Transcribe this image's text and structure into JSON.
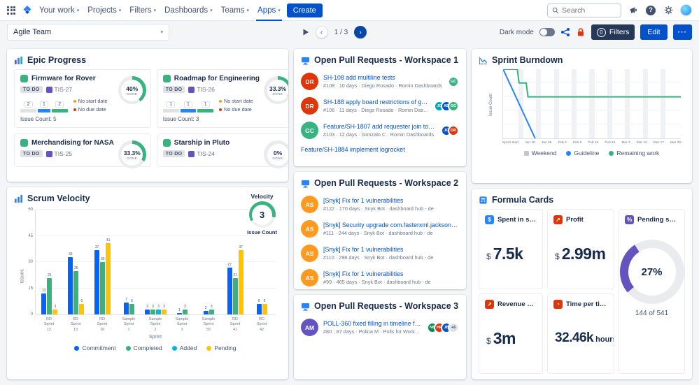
{
  "icons": {
    "app-switcher-icon": "3x3-dot-grid",
    "jira-logo": "blue-diamond",
    "search-icon": "magnifier",
    "announcement-icon": "megaphone",
    "help-icon": "question-circle",
    "settings-icon": "gear",
    "share-icon": "share-nodes",
    "lock-icon": "red-padlock",
    "play-icon": "triangle",
    "chevron-down-icon": "▾",
    "prev-icon": "‹",
    "next-icon": "›"
  },
  "nav": {
    "items": [
      "Your work",
      "Projects",
      "Filters",
      "Dashboards",
      "Teams",
      "Apps"
    ],
    "create_label": "Create",
    "search_placeholder": "Search"
  },
  "toolbar": {
    "dashboard_select": "Agile Team",
    "page_indicator": "1 / 3",
    "dark_mode_label": "Dark mode",
    "filters_count": "0",
    "filters_label": "Filters",
    "edit_label": "Edit",
    "more_label": "···"
  },
  "epic_progress": {
    "title": "Epic Progress",
    "epics": [
      {
        "title": "Firmware for Rover",
        "status": "TO DO",
        "key": "TIS-27",
        "percent": "40%",
        "percent_value": 40,
        "done_label": "DONE",
        "segments": [
          {
            "count": 2,
            "color": "#dfe1e6"
          },
          {
            "count": 1,
            "color": "#2684ff"
          },
          {
            "count": 2,
            "color": "#36b37e"
          }
        ],
        "notes": [
          {
            "label": "No start date",
            "color": "#ff991f"
          },
          {
            "label": "No due date",
            "color": "#de350b"
          }
        ],
        "issue_count_label": "Issue Count: 5"
      },
      {
        "title": "Roadmap for Engineering",
        "status": "TO DO",
        "key": "TIS-26",
        "percent": "33.3%",
        "percent_value": 33.3,
        "done_label": "DONE",
        "segments": [
          {
            "count": 1,
            "color": "#dfe1e6"
          },
          {
            "count": 1,
            "color": "#2684ff"
          },
          {
            "count": 1,
            "color": "#36b37e"
          }
        ],
        "notes": [
          {
            "label": "No start date",
            "color": "#ff991f"
          },
          {
            "label": "No due date",
            "color": "#de350b"
          }
        ],
        "issue_count_label": "Issue Count: 3"
      },
      {
        "title": "Merchandising for NASA",
        "status": "TO DO",
        "key": "TIS-25",
        "percent": "33.3%",
        "percent_value": 33.3,
        "done_label": "DONE"
      },
      {
        "title": "Starship in Pluto",
        "status": "TO DO",
        "key": "TIS-24",
        "percent": "0%",
        "percent_value": 0,
        "done_label": "DONE"
      }
    ]
  },
  "scrum_velocity": {
    "title": "Scrum Velocity",
    "velocity_label": "Velocity",
    "velocity_value": "3",
    "velocity_sub": "Issue Count"
  },
  "pull_requests": {
    "workspaces": [
      {
        "title": "Open Pull Requests - Workspace 1",
        "rows": [
          {
            "avatar": {
              "initials": "DR",
              "color": "#de350b"
            },
            "title": "SH-108 add multiline tests",
            "meta": "#108 · 10 days · Diego Rosado · Romin Dashboards",
            "reviewers": [
              {
                "initials": "GC",
                "color": "#36b37e"
              }
            ]
          },
          {
            "avatar": {
              "initials": "DR",
              "color": "#de350b"
            },
            "title": "SH-188 apply board restrictions of gadget n...",
            "meta": "#106 · 11 days · Diego Rosado · Romin Dashboards",
            "reviewers": [
              {
                "initials": "JG",
                "color": "#00a3bf"
              },
              {
                "initials": "AB",
                "color": "#0052cc"
              },
              {
                "initials": "GC",
                "color": "#36b37e"
              }
            ]
          },
          {
            "avatar": {
              "initials": "GC",
              "color": "#36b37e"
            },
            "title": "Feature/SH-1807 add requester join to the de...",
            "meta": "#103 · 12 days · Gonzalo C · Romin Dashboards",
            "reviewers": [
              {
                "initials": "JG",
                "color": "#0052cc"
              },
              {
                "initials": "DR",
                "color": "#de350b"
              }
            ]
          },
          {
            "title": "Feature/SH-1884 implement logrocket"
          }
        ]
      },
      {
        "title": "Open Pull Requests - Workspace 2",
        "rows": [
          {
            "avatar": {
              "initials": "AS",
              "color": "#ff991f"
            },
            "title": "[Snyk] Fix for 1 vulnerabilities",
            "meta": "#122 · 170 days · Snyk Bot · dashboard hub - de"
          },
          {
            "avatar": {
              "initials": "AS",
              "color": "#ff991f"
            },
            "title": "[Snyk] Security upgrade com.fasterxml.jackson.datatype ja...",
            "meta": "#111 · 244 days · Snyk Bot · dashboard hub - de"
          },
          {
            "avatar": {
              "initials": "AS",
              "color": "#ff991f"
            },
            "title": "[Snyk] Fix for 1 vulnerabilities",
            "meta": "#110 · 298 days · Snyk Bot · dashboard hub - de"
          },
          {
            "avatar": {
              "initials": "AS",
              "color": "#ff991f"
            },
            "title": "[Snyk] Fix for 1 vulnerabilities",
            "meta": "#99 · 465 days · Snyk Bot · dashboard hub - de"
          }
        ]
      },
      {
        "title": "Open Pull Requests - Workspace 3",
        "rows": [
          {
            "avatar": {
              "initials": "AM",
              "color": "#6554c0"
            },
            "title": "POLL-360 fixed filling in timeline for sv...",
            "meta": "#80 · 87 days · Polina M · Polls for Workspace Confluence",
            "reviewers": [
              {
                "initials": "NB",
                "color": "#00875a"
              },
              {
                "initials": "HR",
                "color": "#de350b"
              },
              {
                "initials": "JB",
                "color": "#0052cc"
              }
            ],
            "extra": "+6"
          }
        ]
      }
    ]
  },
  "burndown": {
    "title": "Sprint Burndown"
  },
  "formula": {
    "title": "Formula Cards",
    "cards": [
      {
        "icon": "spent-icon",
        "glyph": "$",
        "icon_color": "#2684ff",
        "title": "Spent in support",
        "prefix": "$",
        "value": "7.5k"
      },
      {
        "icon": "profit-icon",
        "glyph": "↗",
        "icon_color": "#de350b",
        "title": "Profit",
        "prefix": "$",
        "value": "2.99m"
      },
      {
        "icon": "pending-icon",
        "glyph": "%",
        "icon_color": "#6554c0",
        "title": "Pending suppo...",
        "donut": {
          "percent": 27,
          "label": "27%",
          "sub": "144 of 541",
          "color": "#6554c0"
        }
      },
      {
        "icon": "revenue-icon",
        "glyph": "↗",
        "icon_color": "#de350b",
        "title": "Revenue premi...",
        "prefix": "$",
        "value": "3m"
      },
      {
        "icon": "time-icon",
        "glyph": "◔",
        "icon_color": "#de350b",
        "title": "Time per ticket",
        "value": "32.46k",
        "suffix": "hours"
      }
    ]
  },
  "chart_data": [
    {
      "type": "bar",
      "title": "Scrum Velocity",
      "xlabel": "Sprint",
      "ylabel": "Issues",
      "ylim": [
        0,
        60
      ],
      "yticks": [
        0,
        15,
        30,
        45,
        60
      ],
      "categories": [
        "RD Sprint 12",
        "RD Sprint 13",
        "RD Sprint 10",
        "Sample Sprint 1",
        "Sample Sprint 2",
        "Sample Sprint 3",
        "Sample Sprint 55",
        "RD Sprint 41",
        "RD Sprint 42"
      ],
      "series": [
        {
          "name": "Commitment",
          "color": "#0065ff",
          "values": [
            12,
            33,
            37,
            7,
            3,
            1,
            2,
            27,
            6
          ]
        },
        {
          "name": "Completed",
          "color": "#36b37e",
          "values": [
            21,
            25,
            30,
            6,
            3,
            3,
            3,
            21,
            0
          ]
        },
        {
          "name": "Added",
          "color": "#00b8d9",
          "values": [
            0,
            0,
            0,
            0,
            3,
            0,
            0,
            0,
            0
          ]
        },
        {
          "name": "Pending",
          "color": "#ffc400",
          "values": [
            3,
            6,
            41,
            0,
            3,
            0,
            0,
            37,
            6
          ]
        }
      ],
      "legend_position": "bottom"
    },
    {
      "type": "line",
      "title": "Sprint Burndown",
      "ylabel": "Issue Count",
      "ylim": [
        0,
        5
      ],
      "yticks": [
        0,
        1,
        2,
        3,
        4,
        5
      ],
      "x_ticks": [
        "Sprint start",
        "Jan 18",
        "Jan 26",
        "Feb 2",
        "Feb 9",
        "Feb 16",
        "Feb 24",
        "Mar 3",
        "Mar 10",
        "Mar 17",
        "Mar 30"
      ],
      "series": [
        {
          "name": "Guideline",
          "color": "#2684ff",
          "points": [
            [
              0,
              5
            ],
            [
              1.8,
              0
            ]
          ]
        },
        {
          "name": "Remaining work",
          "color": "#36b37e",
          "points": [
            [
              0,
              5
            ],
            [
              0.8,
              5
            ],
            [
              0.9,
              4
            ],
            [
              1.3,
              4
            ],
            [
              1.4,
              3
            ],
            [
              10,
              3
            ]
          ]
        }
      ],
      "legend": [
        {
          "label": "Weekend",
          "color": "#c1c7d0",
          "shape": "square"
        },
        {
          "label": "Guideline",
          "color": "#2684ff",
          "shape": "dot"
        },
        {
          "label": "Remaining work",
          "color": "#36b37e",
          "shape": "dot"
        }
      ]
    }
  ]
}
